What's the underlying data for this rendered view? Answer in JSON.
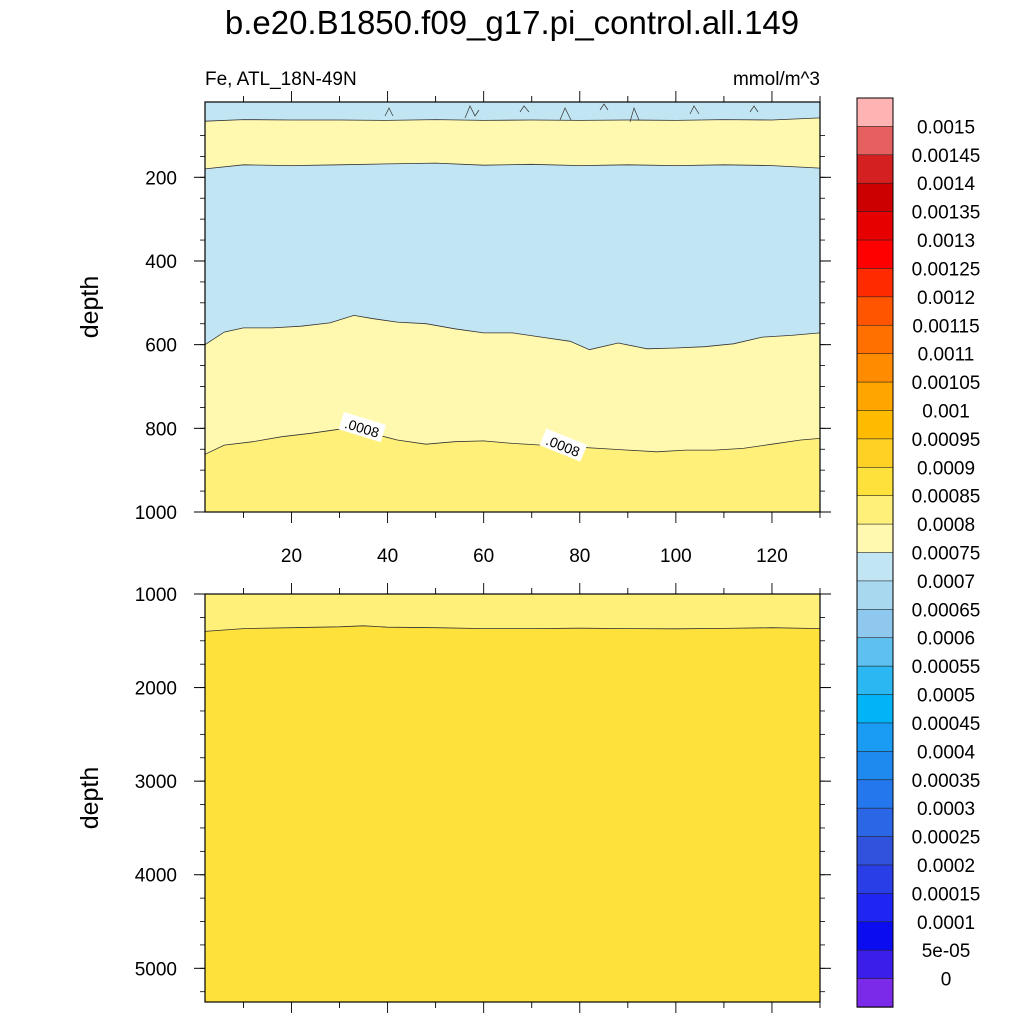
{
  "chart_data": {
    "type": "heatmap",
    "title": "b.e20.B1850.f09_g17.pi_control.all.149",
    "subtitle_left": "Fe, ATL_18N-49N",
    "subtitle_right": "mmol/m^3",
    "panels": [
      {
        "id": "upper",
        "ylabel": "depth",
        "ylim": [
          1000,
          20
        ],
        "xlim": [
          2,
          130
        ],
        "xticks": [
          "20",
          "40",
          "60",
          "80",
          "100",
          "120"
        ],
        "yticks": [
          "200",
          "400",
          "600",
          "800",
          "1000"
        ],
        "contour_labels": [
          ".0008",
          ".0008"
        ],
        "bands": [
          {
            "color": "#c2e5f4",
            "boundary": [
              [
                2,
                66
              ],
              [
                10,
                62
              ],
              [
                20,
                63
              ],
              [
                30,
                63
              ],
              [
                40,
                64
              ],
              [
                50,
                62
              ],
              [
                60,
                64
              ],
              [
                70,
                63
              ],
              [
                80,
                64
              ],
              [
                90,
                63
              ],
              [
                100,
                64
              ],
              [
                110,
                62
              ],
              [
                120,
                63
              ],
              [
                130,
                58
              ]
            ]
          },
          {
            "color": "#fff9b0",
            "boundary": [
              [
                2,
                180
              ],
              [
                10,
                170
              ],
              [
                20,
                172
              ],
              [
                30,
                170
              ],
              [
                40,
                168
              ],
              [
                50,
                166
              ],
              [
                60,
                171
              ],
              [
                70,
                169
              ],
              [
                80,
                172
              ],
              [
                90,
                170
              ],
              [
                100,
                172
              ],
              [
                110,
                170
              ],
              [
                120,
                172
              ],
              [
                130,
                178
              ]
            ]
          },
          {
            "color": "#c2e5f4",
            "boundary": [
              [
                2,
                600
              ],
              [
                6,
                570
              ],
              [
                10,
                560
              ],
              [
                16,
                560
              ],
              [
                22,
                556
              ],
              [
                28,
                548
              ],
              [
                33,
                530
              ],
              [
                37,
                538
              ],
              [
                42,
                546
              ],
              [
                48,
                550
              ],
              [
                54,
                562
              ],
              [
                60,
                572
              ],
              [
                66,
                572
              ],
              [
                72,
                582
              ],
              [
                78,
                592
              ],
              [
                82,
                612
              ],
              [
                88,
                596
              ],
              [
                94,
                610
              ],
              [
                100,
                608
              ],
              [
                106,
                605
              ],
              [
                112,
                598
              ],
              [
                118,
                582
              ],
              [
                124,
                578
              ],
              [
                130,
                572
              ]
            ]
          },
          {
            "color": "#fff9b0",
            "boundary": [
              [
                2,
                862
              ],
              [
                6,
                840
              ],
              [
                12,
                832
              ],
              [
                18,
                820
              ],
              [
                24,
                812
              ],
              [
                30,
                802
              ],
              [
                36,
                810
              ],
              [
                42,
                828
              ],
              [
                48,
                838
              ],
              [
                54,
                832
              ],
              [
                60,
                830
              ],
              [
                66,
                836
              ],
              [
                72,
                840
              ],
              [
                78,
                844
              ],
              [
                84,
                848
              ],
              [
                90,
                852
              ],
              [
                96,
                856
              ],
              [
                102,
                852
              ],
              [
                108,
                852
              ],
              [
                114,
                848
              ],
              [
                120,
                838
              ],
              [
                126,
                828
              ],
              [
                130,
                824
              ]
            ]
          },
          {
            "color": "#fff07a",
            "boundary": null
          }
        ]
      },
      {
        "id": "lower",
        "ylabel": "depth",
        "ylim": [
          5360,
          1000
        ],
        "xlim": [
          2,
          130
        ],
        "xticks": [],
        "yticks": [
          "1000",
          "2000",
          "3000",
          "4000",
          "5000"
        ],
        "bands": [
          {
            "color": "#fff07a",
            "boundary": [
              [
                2,
                1400
              ],
              [
                10,
                1370
              ],
              [
                20,
                1360
              ],
              [
                30,
                1350
              ],
              [
                35,
                1340
              ],
              [
                40,
                1355
              ],
              [
                50,
                1360
              ],
              [
                60,
                1370
              ],
              [
                70,
                1370
              ],
              [
                80,
                1365
              ],
              [
                90,
                1370
              ],
              [
                100,
                1372
              ],
              [
                110,
                1368
              ],
              [
                120,
                1360
              ],
              [
                130,
                1370
              ]
            ]
          },
          {
            "color": "#fee13a",
            "boundary": null
          }
        ]
      }
    ],
    "colorbar": {
      "labels": [
        "0.0015",
        "0.00145",
        "0.0014",
        "0.00135",
        "0.0013",
        "0.00125",
        "0.0012",
        "0.00115",
        "0.0011",
        "0.00105",
        "0.001",
        "0.00095",
        "0.0009",
        "0.00085",
        "0.0008",
        "0.00075",
        "0.0007",
        "0.00065",
        "0.0006",
        "0.00055",
        "0.0005",
        "0.00045",
        "0.0004",
        "0.00035",
        "0.0003",
        "0.00025",
        "0.0002",
        "0.00015",
        "0.0001",
        "5e-05",
        "0"
      ],
      "colors": [
        "#ffb3b3",
        "#e66060",
        "#d42020",
        "#cc0000",
        "#e60000",
        "#ff0000",
        "#ff2a00",
        "#ff5500",
        "#ff7000",
        "#ff8c00",
        "#ffa500",
        "#ffbb00",
        "#ffd125",
        "#fee13a",
        "#fff07a",
        "#fff9b0",
        "#c2e5f4",
        "#a8d8f0",
        "#8ec8ee",
        "#5ec0ef",
        "#2bb8f2",
        "#00b4f7",
        "#1a9cf5",
        "#1e8af0",
        "#2477ec",
        "#2b66e6",
        "#3052dc",
        "#2a3ee8",
        "#1f26f2",
        "#0c0cf0",
        "#3b1eea",
        "#7b2aea"
      ]
    }
  }
}
